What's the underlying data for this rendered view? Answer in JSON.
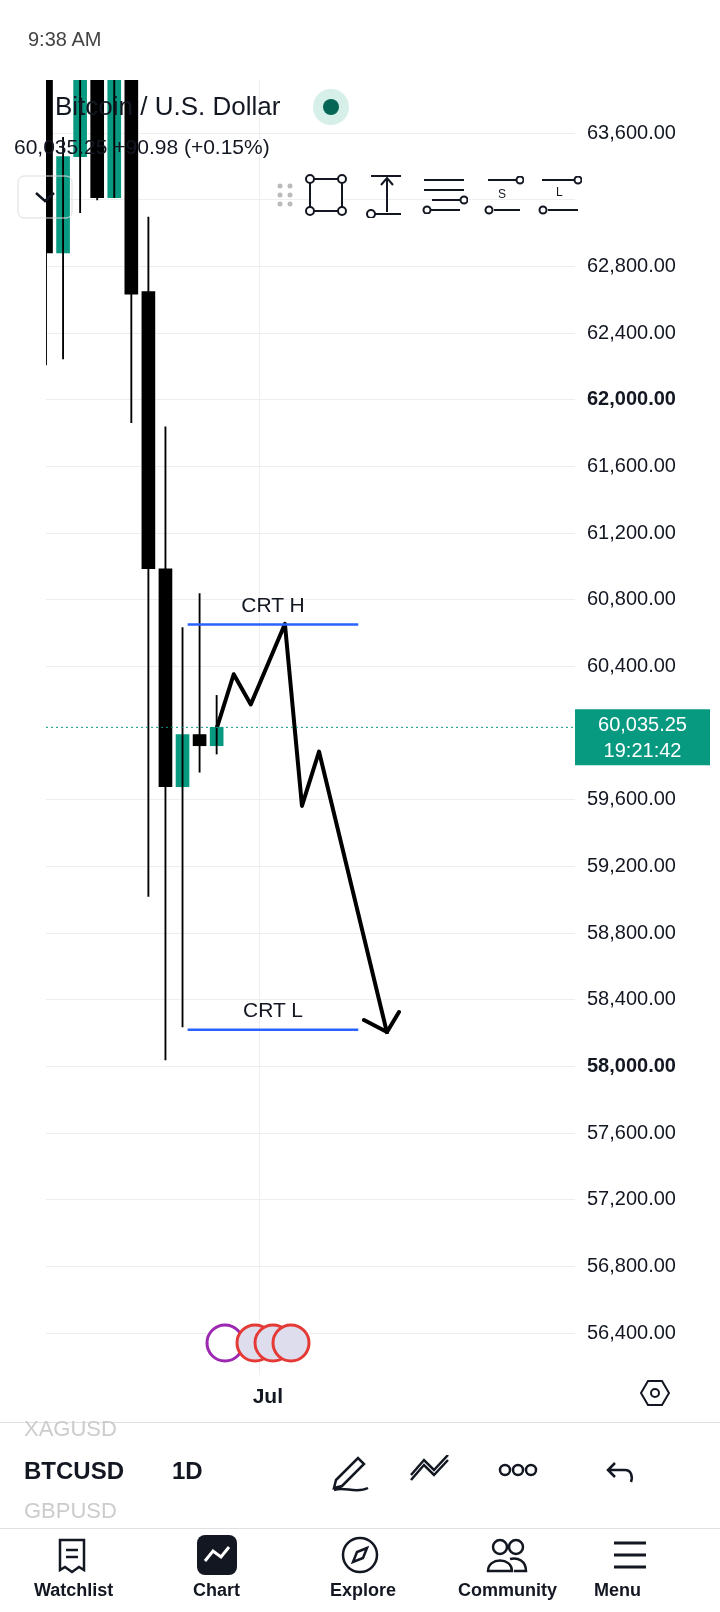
{
  "chart_data": {
    "type": "candlestick",
    "title": "Bitcoin / U.S. Dollar",
    "subtitle": "60,035.25  +90.98 (+0.15%)",
    "categories": [
      null,
      null,
      null,
      null,
      null,
      null,
      null,
      null,
      null,
      null,
      null,
      null,
      null,
      "Jul",
      null,
      null,
      null,
      null,
      null,
      null,
      null,
      null,
      null,
      null,
      null,
      null,
      null,
      null,
      null,
      null,
      null,
      null
    ],
    "ohlc": [
      [
        63918,
        63918,
        62210,
        62882
      ],
      [
        62882,
        63576,
        62246,
        63460
      ],
      [
        63460,
        63918,
        63124,
        63918
      ],
      [
        63918,
        63918,
        63200,
        63214
      ],
      [
        63214,
        63918,
        63214,
        63918
      ],
      [
        63918,
        63918,
        61863,
        62635
      ],
      [
        62650,
        63098,
        59021,
        60987
      ],
      [
        60987,
        61839,
        58040,
        59679
      ],
      [
        59679,
        60634,
        58237,
        59992
      ],
      [
        59992,
        60838,
        59766,
        59925
      ],
      [
        59925,
        60227,
        59875,
        60035
      ],
      null,
      null,
      null,
      null,
      null,
      null,
      null,
      null,
      null,
      null,
      null,
      null,
      null,
      null,
      null,
      null,
      null,
      null,
      null,
      null,
      null
    ],
    "colors": [
      "#000000",
      "#089981",
      "#089981",
      "#000000",
      "#089981",
      "#000000",
      "#000000",
      "#000000",
      "#089981",
      "#000000",
      "#089981",
      null,
      null,
      null,
      null,
      null,
      null,
      null,
      null,
      null,
      null,
      null,
      null,
      null,
      null,
      null,
      null,
      null,
      null,
      null,
      null,
      null
    ],
    "series": [
      {
        "type": "line",
        "color": "#000000",
        "values": [
          null,
          null,
          null,
          null,
          null,
          null,
          null,
          null,
          null,
          null,
          60028,
          60354,
          60173,
          null,
          60656,
          59564,
          59890,
          null,
          null,
          null,
          58196,
          null,
          null,
          null,
          null,
          null,
          null,
          null,
          null,
          null,
          null,
          null
        ]
      }
    ],
    "ylim": [
      56150,
      63920
    ],
    "yticks": [
      {
        "value": 56400,
        "label": "56,400.00"
      },
      {
        "value": 56800,
        "label": "56,800.00"
      },
      {
        "value": 57200,
        "label": "57,200.00"
      },
      {
        "value": 57600,
        "label": "57,600.00"
      },
      {
        "value": 58000,
        "label": "58,000.00"
      },
      {
        "value": 58400,
        "label": "58,400.00"
      },
      {
        "value": 58800,
        "label": "58,800.00"
      },
      {
        "value": 59200,
        "label": "59,200.00"
      },
      {
        "value": 59600,
        "label": "59,600.00"
      },
      {
        "value": 60400,
        "label": "60,400.00"
      },
      {
        "value": 60800,
        "label": "60,800.00"
      },
      {
        "value": 61200,
        "label": "61,200.00"
      },
      {
        "value": 61600,
        "label": "61,600.00"
      },
      {
        "value": 62000,
        "label": "62,000.00"
      },
      {
        "value": 62400,
        "label": "62,400.00"
      },
      {
        "value": 62800,
        "label": "62,800.00"
      },
      {
        "value": 63200,
        "label": null
      },
      {
        "value": 63600,
        "label": "63,600.00"
      }
    ],
    "grid": true,
    "ref_lines": [
      {
        "axis": "y",
        "value": 60652,
        "label": "CRT H",
        "color": "#2962ff"
      },
      {
        "axis": "y",
        "value": 58220,
        "label": "CRT L",
        "color": "#2962ff"
      },
      {
        "axis": "y",
        "value": 60035.25,
        "label": "60,035.25",
        "color": "#089981",
        "line_style": "dotted"
      }
    ],
    "annotations": [
      "9:38 AM",
      "19:21:42",
      "XAGUSD",
      "BTCUSD",
      "1D",
      "GBPUSD",
      "Watchlist",
      "Chart",
      "Explore",
      "Community",
      "Menu",
      "S",
      "L"
    ]
  }
}
